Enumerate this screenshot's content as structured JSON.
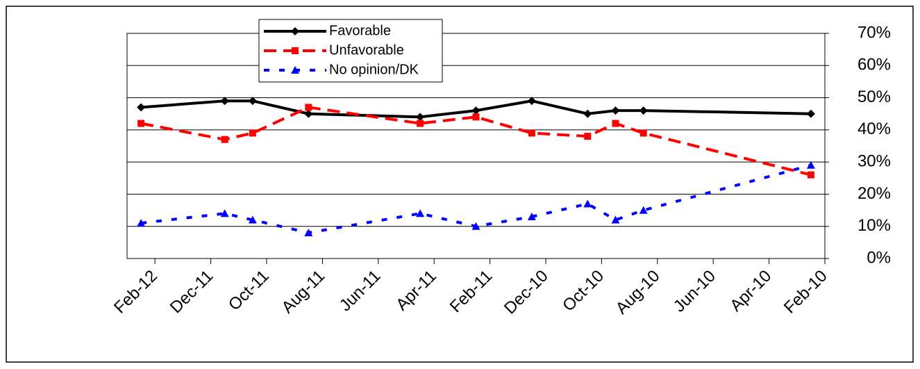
{
  "chart_data": {
    "type": "line",
    "x": [
      "Feb-12",
      "Nov-11",
      "Oct-11",
      "Aug-11",
      "Apr-11",
      "Feb-11",
      "Dec-10",
      "Oct-10",
      "Sep-10",
      "Aug-10",
      "Feb-10"
    ],
    "series": [
      {
        "name": "Favorable",
        "color": "#000000",
        "line_style": "solid",
        "marker": "diamond",
        "values": [
          47,
          49,
          49,
          45,
          44,
          46,
          49,
          45,
          46,
          46,
          45
        ]
      },
      {
        "name": "Unfavorable",
        "color": "#ff0000",
        "line_style": "dashed",
        "marker": "square",
        "values": [
          42,
          37,
          39,
          47,
          42,
          44,
          39,
          38,
          42,
          39,
          26
        ]
      },
      {
        "name": "No opinion/DK",
        "color": "#0000ff",
        "line_style": "dotted",
        "marker": "triangle",
        "values": [
          11,
          14,
          12,
          8,
          14,
          10,
          13,
          17,
          12,
          15,
          29
        ]
      }
    ],
    "xlim": [
      "Mar-12",
      "Feb-10"
    ],
    "xticks": [
      "Feb-12",
      "Dec-11",
      "Oct-11",
      "Aug-11",
      "Jun-11",
      "Apr-11",
      "Feb-11",
      "Dec-10",
      "Oct-10",
      "Aug-10",
      "Jun-10",
      "Apr-10",
      "Feb-10"
    ],
    "ylim": [
      0,
      70
    ],
    "yticks": [
      {
        "value": 0,
        "label": "0%"
      },
      {
        "value": 10,
        "label": "10%"
      },
      {
        "value": 20,
        "label": "20%"
      },
      {
        "value": 30,
        "label": "30%"
      },
      {
        "value": 40,
        "label": "40%"
      },
      {
        "value": 50,
        "label": "50%"
      },
      {
        "value": 60,
        "label": "60%"
      },
      {
        "value": 70,
        "label": "70%"
      }
    ],
    "y_axis_side": "right",
    "grid": true,
    "legend": "top-left"
  }
}
